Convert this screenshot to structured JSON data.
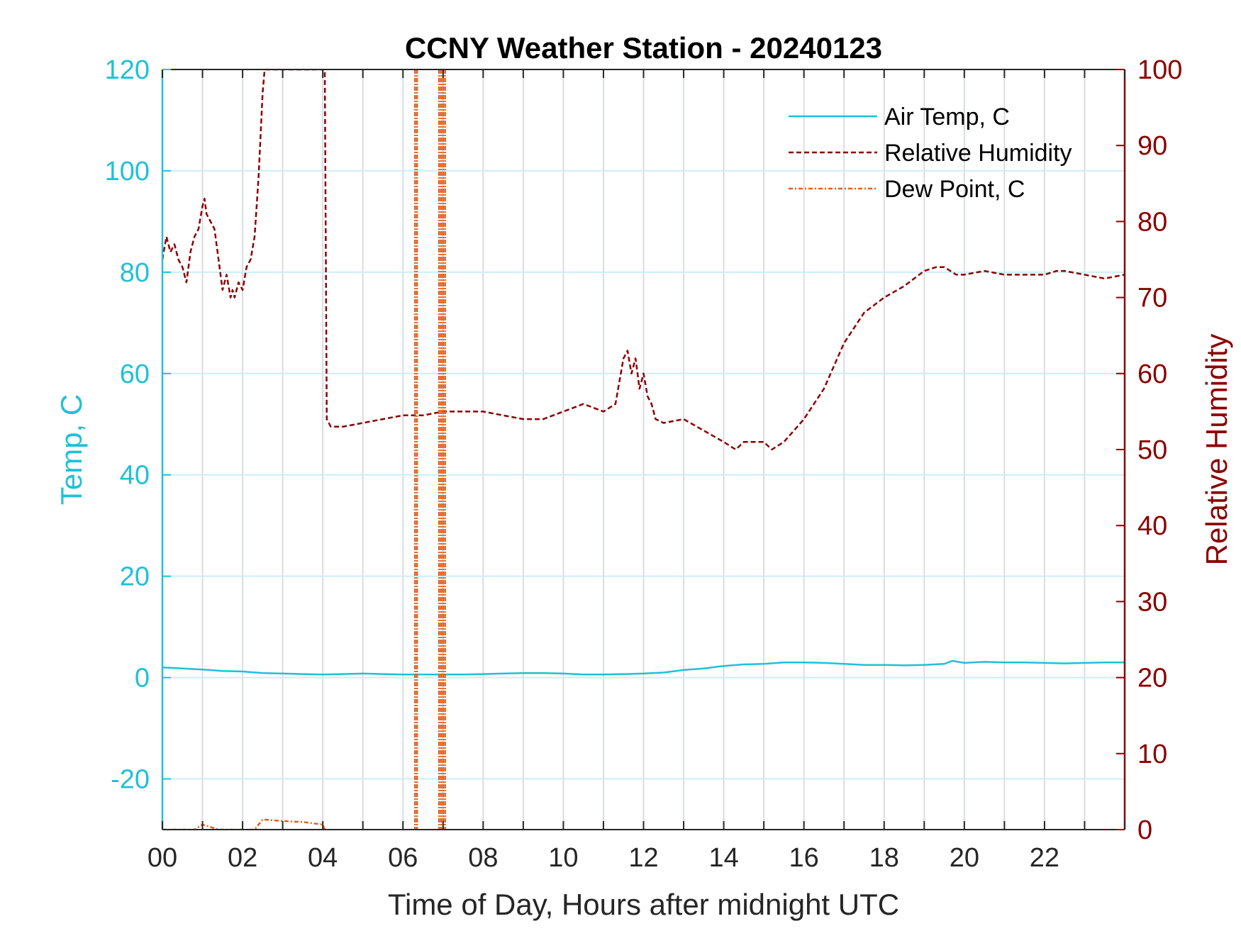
{
  "chart_data": {
    "type": "line",
    "title": "CCNY Weather Station - 20240123",
    "xlabel": "Time of Day, Hours after midnight UTC",
    "ylabel_left": "Temp, C",
    "ylabel_right": "Relative Humidity",
    "xlim": [
      0,
      24
    ],
    "ylim_left": [
      -30,
      120
    ],
    "ylim_right": [
      0,
      100
    ],
    "x_ticks": [
      0,
      2,
      4,
      6,
      8,
      10,
      12,
      14,
      16,
      18,
      20,
      22
    ],
    "x_tick_labels": [
      "00",
      "02",
      "04",
      "06",
      "08",
      "10",
      "12",
      "14",
      "16",
      "18",
      "20",
      "22"
    ],
    "y_left_ticks": [
      -20,
      0,
      20,
      40,
      60,
      80,
      100,
      120
    ],
    "y_left_tick_labels": [
      "-20",
      "0",
      "20",
      "40",
      "60",
      "80",
      "100",
      "120"
    ],
    "y_right_ticks": [
      0,
      10,
      20,
      30,
      40,
      50,
      60,
      70,
      80,
      90,
      100
    ],
    "y_right_tick_labels": [
      "0",
      "10",
      "20",
      "30",
      "40",
      "50",
      "60",
      "70",
      "80",
      "90",
      "100"
    ],
    "grid": true,
    "legend_position": "top-right",
    "colors": {
      "air_temp": "#20c0d8",
      "relative_humidity": "#8b0000",
      "dew_point": "#e06020",
      "left_axis": "#20c0d8",
      "right_axis": "#8b0000",
      "grid": "#d8dde2"
    },
    "series": [
      {
        "name": "Air Temp, C",
        "axis": "left",
        "style": "solid",
        "x": [
          0,
          0.5,
          1,
          1.5,
          2,
          2.5,
          3,
          3.5,
          4,
          4.5,
          5,
          5.5,
          6,
          6.5,
          7,
          7.5,
          8,
          8.5,
          9,
          9.5,
          10,
          10.5,
          11,
          11.5,
          12,
          12.5,
          13,
          13.5,
          14,
          14.5,
          15,
          15.5,
          16,
          16.5,
          17,
          17.5,
          18,
          18.5,
          19,
          19.5,
          19.7,
          20,
          20.5,
          21,
          21.5,
          22,
          22.5,
          23,
          23.5,
          24
        ],
        "values": [
          2,
          1.8,
          1.6,
          1.3,
          1.2,
          0.9,
          0.8,
          0.7,
          0.6,
          0.7,
          0.8,
          0.7,
          0.6,
          0.6,
          0.6,
          0.6,
          0.7,
          0.8,
          0.9,
          0.9,
          0.8,
          0.6,
          0.6,
          0.7,
          0.8,
          1.0,
          1.5,
          1.8,
          2.3,
          2.6,
          2.7,
          3.0,
          3.0,
          2.9,
          2.7,
          2.5,
          2.5,
          2.4,
          2.5,
          2.7,
          3.3,
          2.9,
          3.1,
          3.0,
          3.0,
          2.9,
          2.8,
          2.9,
          3.0,
          3.0
        ]
      },
      {
        "name": "Relative Humidity",
        "axis": "right",
        "style": "dashed",
        "x": [
          0,
          0.1,
          0.2,
          0.3,
          0.4,
          0.5,
          0.6,
          0.7,
          0.8,
          0.9,
          1.0,
          1.05,
          1.1,
          1.2,
          1.3,
          1.4,
          1.5,
          1.6,
          1.7,
          1.75,
          1.8,
          1.9,
          2.0,
          2.1,
          2.2,
          2.3,
          2.35,
          2.4,
          2.5,
          2.55,
          4.05,
          4.1,
          4.2,
          4.5,
          5.0,
          5.5,
          6.0,
          6.5,
          7.0,
          7.5,
          8.0,
          8.5,
          9.0,
          9.5,
          10.0,
          10.5,
          11.0,
          11.3,
          11.5,
          11.6,
          11.7,
          11.8,
          11.9,
          12.0,
          12.1,
          12.2,
          12.3,
          12.5,
          13.0,
          13.5,
          14.0,
          14.3,
          14.5,
          15.0,
          15.2,
          15.5,
          16.0,
          16.5,
          17.0,
          17.5,
          18.0,
          18.5,
          19.0,
          19.3,
          19.5,
          19.8,
          20.0,
          20.5,
          21.0,
          21.5,
          22.0,
          22.3,
          22.5,
          23.0,
          23.5,
          24.0
        ],
        "values": [
          75,
          78,
          76,
          77,
          75,
          74,
          72,
          76,
          78,
          79,
          82,
          83,
          81,
          80,
          79,
          75,
          71,
          73,
          70,
          71,
          70,
          72,
          71,
          74,
          75,
          78,
          82,
          86,
          97,
          100,
          100,
          54,
          53,
          53,
          53.5,
          54,
          54.5,
          54.5,
          55,
          55,
          55,
          54.5,
          54,
          54,
          55,
          56,
          55,
          56,
          62,
          63,
          60,
          62,
          58,
          60,
          57,
          56,
          54,
          53.5,
          54,
          52.5,
          51,
          50,
          51,
          51,
          50,
          51,
          54,
          58,
          64,
          68,
          70,
          71.5,
          73.5,
          74,
          74,
          73,
          73,
          73.5,
          73,
          73,
          73,
          73.5,
          73.5,
          73,
          72.5,
          73
        ]
      },
      {
        "name": "Dew Point, C",
        "axis": "left",
        "style": "dash-dot",
        "x": [
          0,
          0.5,
          0.8,
          1.0,
          1.2,
          1.4,
          2.0,
          2.3,
          2.5,
          3.0,
          3.5,
          4.0,
          4.05
        ],
        "values": [
          -30,
          -30,
          -30,
          -29,
          -29.5,
          -30,
          -30,
          -30,
          -28,
          -28.3,
          -28.5,
          -29,
          -30
        ],
        "spikes_x": [
          6.3,
          6.35,
          6.9,
          6.95,
          7.0,
          7.05
        ]
      }
    ],
    "legend": [
      "Air Temp, C",
      "Relative Humidity",
      "Dew Point, C"
    ]
  }
}
